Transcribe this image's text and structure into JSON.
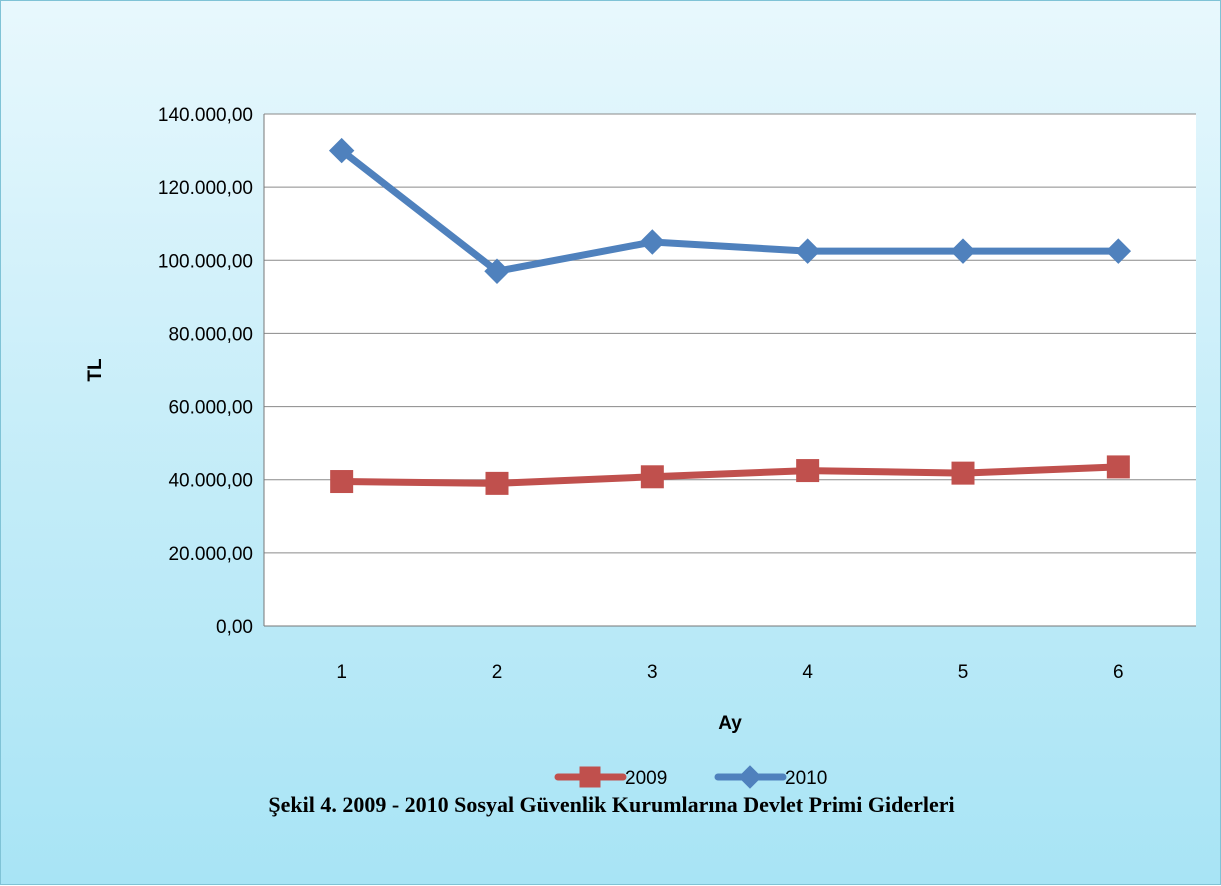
{
  "caption": "Şekil 4. 2009 - 2010 Sosyal Güvenlik Kurumlarına Devlet Primi  Giderleri",
  "chart_data": {
    "type": "line",
    "xlabel": "Ay",
    "ylabel": "TL",
    "categories": [
      "1",
      "2",
      "3",
      "4",
      "5",
      "6"
    ],
    "ylim": [
      0,
      140000
    ],
    "ytick_step": 20000,
    "ytick_labels": [
      "0,00",
      "20.000,00",
      "40.000,00",
      "60.000,00",
      "80.000,00",
      "100.000,00",
      "120.000,00",
      "140.000,00"
    ],
    "grid": true,
    "legend_position": "bottom",
    "series": [
      {
        "name": "2009",
        "marker": "square",
        "color": "#c0504d",
        "values": [
          39500,
          39000,
          40800,
          42500,
          41800,
          43500
        ]
      },
      {
        "name": "2010",
        "marker": "diamond",
        "color": "#4f81bd",
        "values": [
          130000,
          97000,
          105000,
          102500,
          102500,
          102500
        ]
      }
    ]
  }
}
